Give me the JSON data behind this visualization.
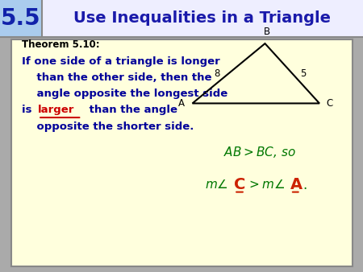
{
  "title_num": "5.5",
  "title_text": "Use Inequalities in a Triangle",
  "num_bg": "#aaccee",
  "title_bg": "#eeeeff",
  "card_bg": "#ffffdd",
  "outer_bg": "#aaaaaa",
  "theorem_label": "Theorem 5.10:",
  "body_color": "#000099",
  "larger_color": "#cc0000",
  "triangle_color": "#000000",
  "tri_A": [
    0.53,
    0.62
  ],
  "tri_B": [
    0.73,
    0.84
  ],
  "tri_C": [
    0.88,
    0.62
  ],
  "label_A": "A",
  "label_B": "B",
  "label_C": "C",
  "label_8": "8",
  "label_5": "5",
  "math_color": "#007700",
  "red_color": "#cc2200"
}
